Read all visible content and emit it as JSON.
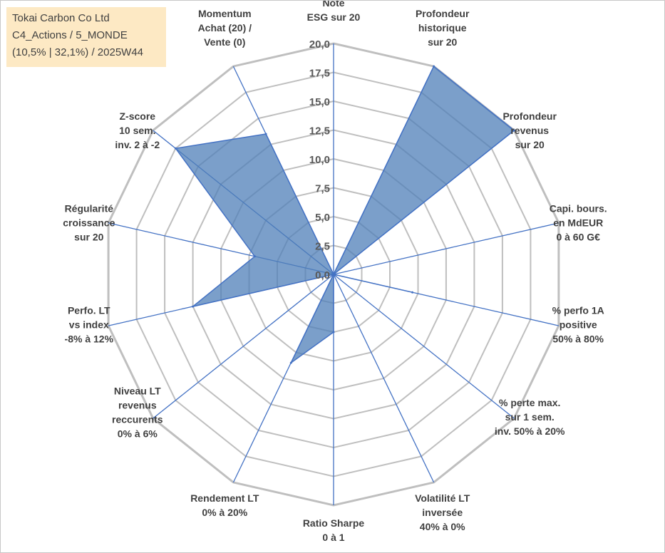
{
  "info": {
    "line1": "Tokai Carbon Co Ltd",
    "line2": "C4_Actions / 5_MONDE",
    "line3": "(10,5% | 32,1%) / 2025W44"
  },
  "chart_data": {
    "type": "radar",
    "rmin": 0,
    "rmax": 20,
    "ticks": [
      "0,0",
      "2,5",
      "5,0",
      "7,5",
      "10,0",
      "12,5",
      "15,0",
      "17,5",
      "20,0"
    ],
    "tick_values": [
      0,
      2.5,
      5,
      7.5,
      10,
      12.5,
      15,
      17.5,
      20
    ],
    "categories": [
      [
        "Note",
        "ESG sur 20"
      ],
      [
        "Profondeur",
        "historique",
        "sur 20"
      ],
      [
        "Profondeur",
        "revenus",
        "sur 20"
      ],
      [
        "Capi. bours.",
        "en MdEUR",
        "0 à 60 G€"
      ],
      [
        "% perfo 1A",
        "positive",
        "50% à 80%"
      ],
      [
        "% perte max.",
        "sur 1 sem.",
        "inv. 50% à 20%"
      ],
      [
        "Volatilité LT",
        "inversée",
        "40% à 0%"
      ],
      [
        "Ratio Sharpe",
        "0 à 1"
      ],
      [
        "Rendement LT",
        "0% à 20%"
      ],
      [
        "Niveau LT",
        "revenus",
        "reccurents",
        "0% à 6%"
      ],
      [
        "Perfo. LT",
        "vs index",
        "-8% à 12%"
      ],
      [
        "Régularité",
        "croissance",
        "sur 20"
      ],
      [
        "Z-score",
        "10 sem.",
        "inv. 2 à -2"
      ],
      [
        "Momentum",
        "Achat (20) /",
        "Vente (0)"
      ]
    ],
    "series": [
      {
        "values": [
          0,
          20,
          20,
          0,
          7,
          0,
          0,
          5,
          8.5,
          0,
          12.5,
          7,
          17.5,
          13.5
        ],
        "color": "#4f7fb8"
      }
    ],
    "grid": true,
    "colors": {
      "grid": "#bfbfbf",
      "spoke": "#4472c4",
      "fill": "#4f7fb8"
    }
  }
}
